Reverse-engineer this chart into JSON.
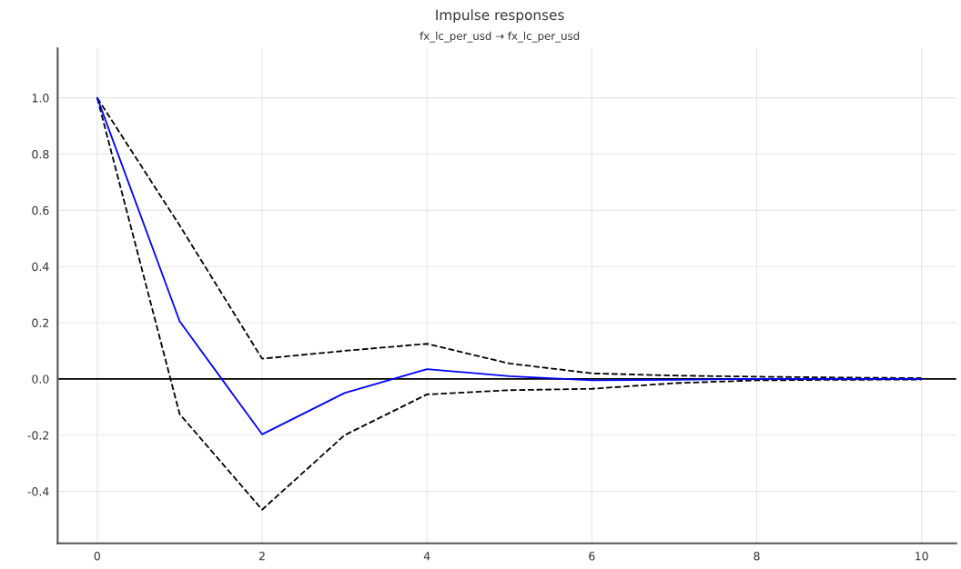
{
  "chart_data": {
    "type": "line",
    "title": "Impulse responses",
    "subtitle": "fx_lc_per_usd → fx_lc_per_usd",
    "x": [
      0,
      1,
      2,
      3,
      4,
      5,
      6,
      7,
      8,
      9,
      10
    ],
    "series": [
      {
        "color": "#0000ff",
        "line_style": "solid",
        "values": [
          1.0,
          0.205,
          -0.197,
          -0.05,
          0.035,
          0.01,
          -0.005,
          -0.003,
          0.0,
          0.0,
          0.0
        ]
      },
      {
        "color": "#000000",
        "line_style": "dashed",
        "values": [
          1.0,
          0.546,
          0.072,
          0.1,
          0.125,
          0.055,
          0.02,
          0.012,
          0.008,
          0.005,
          0.003
        ]
      },
      {
        "color": "#000000",
        "line_style": "dashed",
        "values": [
          1.0,
          -0.125,
          -0.465,
          -0.2,
          -0.055,
          -0.04,
          -0.035,
          -0.015,
          -0.005,
          -0.003,
          -0.002
        ]
      }
    ],
    "xlim": [
      -0.48,
      10.42
    ],
    "ylim": [
      -0.585,
      1.176
    ],
    "xticks": [
      0,
      2,
      4,
      6,
      8,
      10
    ],
    "yticks": [
      -0.4,
      -0.2,
      {
        "value": 0,
        "label": "0.0"
      },
      0.2,
      0.4,
      0.6,
      0.8,
      {
        "value": 1,
        "label": "1.0"
      }
    ],
    "ref_lines": [
      {
        "axis": "y",
        "value": 0,
        "color": "#000000",
        "line_style": "solid"
      }
    ],
    "grid": true
  }
}
